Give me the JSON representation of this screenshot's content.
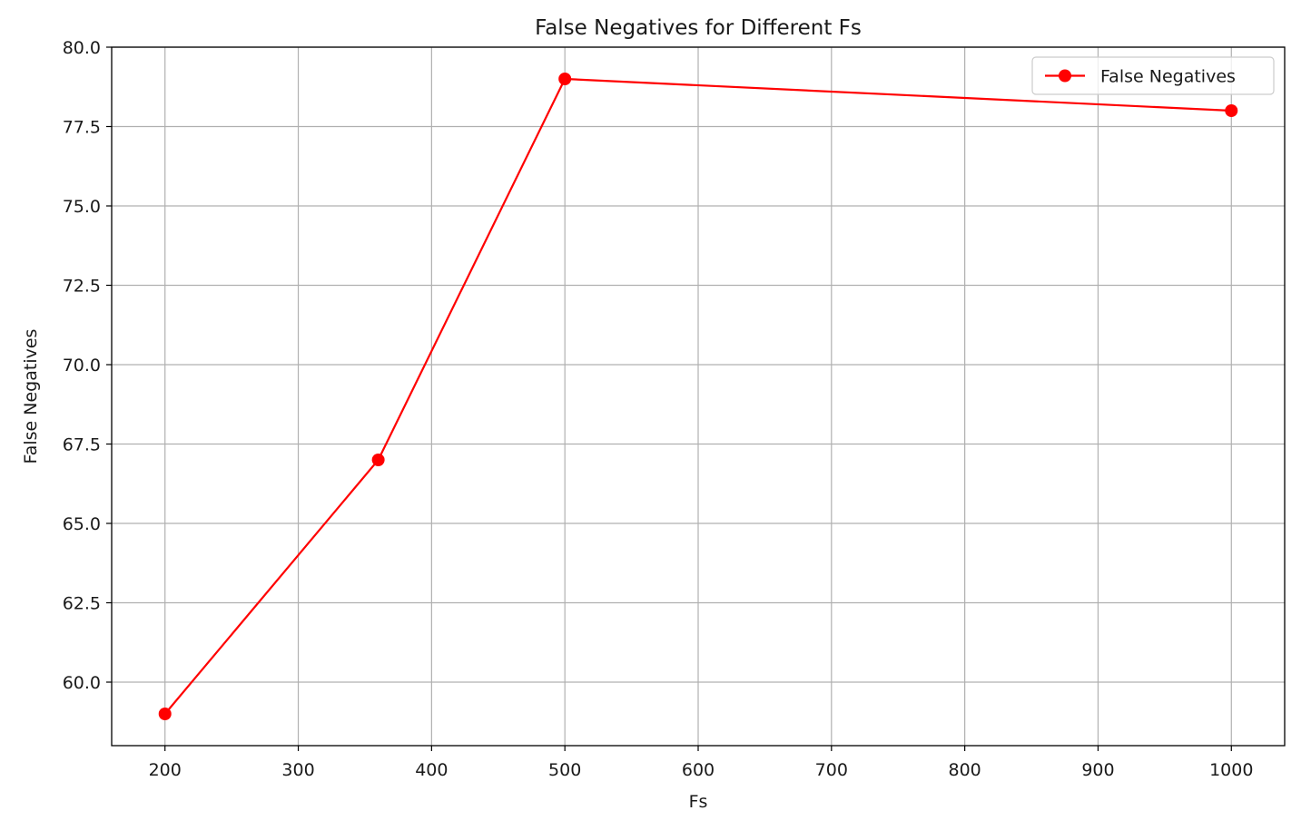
{
  "chart_data": {
    "type": "line",
    "title": "False Negatives for Different Fs",
    "xlabel": "Fs",
    "ylabel": "False Negatives",
    "x": [
      200,
      360,
      500,
      1000
    ],
    "series": [
      {
        "name": "False Negatives",
        "values": [
          59,
          67,
          79,
          78
        ],
        "color": "#ff0000",
        "marker": "circle"
      }
    ],
    "xlim": [
      160,
      1040
    ],
    "ylim": [
      58,
      80
    ],
    "xticks": [
      200,
      300,
      400,
      500,
      600,
      700,
      800,
      900,
      1000
    ],
    "xtick_labels": [
      "200",
      "300",
      "400",
      "500",
      "600",
      "700",
      "800",
      "900",
      "1000"
    ],
    "yticks": [
      60,
      62.5,
      65,
      67.5,
      70,
      72.5,
      75,
      77.5,
      80
    ],
    "ytick_labels": [
      "60.0",
      "62.5",
      "65.0",
      "67.5",
      "70.0",
      "72.5",
      "75.0",
      "77.5",
      "80.0"
    ],
    "grid": true,
    "legend_position": "top-right"
  }
}
